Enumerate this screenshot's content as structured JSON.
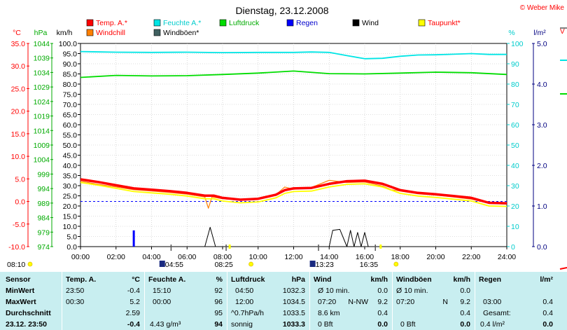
{
  "title": "Dienstag, 23.12.2008",
  "copyright": "© Weber Mike",
  "chart_data": {
    "type": "line",
    "x_ticks": [
      "00:00",
      "02:00",
      "04:00",
      "06:00",
      "08:00",
      "10:00",
      "12:00",
      "14:00",
      "16:00",
      "18:00",
      "20:00",
      "22:00",
      "24:00"
    ],
    "axes": {
      "temp": {
        "label": "°C",
        "ticks": [
          "35.0",
          "30.0",
          "25.0",
          "20.0",
          "15.0",
          "10.0",
          "5.0",
          "0.0",
          "-5.0",
          "-10.0"
        ],
        "range": [
          -10,
          35
        ],
        "color": "#ff0000"
      },
      "pressure": {
        "label": "hPa",
        "ticks": [
          "1044",
          "1039",
          "1034",
          "1029",
          "1024",
          "1019",
          "1014",
          "1009",
          "1004",
          "999",
          "994",
          "989",
          "984",
          "979",
          "974"
        ],
        "range": [
          974,
          1044
        ],
        "color": "#00aa00"
      },
      "wind": {
        "label": "km/h",
        "ticks": [
          "100.0",
          "95.0",
          "90.0",
          "85.0",
          "80.0",
          "75.0",
          "70.0",
          "65.0",
          "60.0",
          "55.0",
          "50.0",
          "45.0",
          "40.0",
          "35.0",
          "30.0",
          "25.0",
          "20.0",
          "15.0",
          "10.0",
          "5.0",
          "0.0"
        ],
        "range": [
          0,
          100
        ],
        "color": "#000000"
      },
      "humidity": {
        "label": "%",
        "ticks": [
          "100",
          "90",
          "80",
          "70",
          "60",
          "50",
          "40",
          "30",
          "20",
          "10",
          "0"
        ],
        "range": [
          0,
          100
        ],
        "color": "#00c8c8"
      },
      "rain": {
        "label": "l/m²",
        "ticks": [
          "5.0",
          "4.0",
          "3.0",
          "2.0",
          "1.0",
          "0.0"
        ],
        "range": [
          0,
          5
        ],
        "color": "#000080"
      }
    },
    "legend": [
      {
        "name": "Temp. A.*",
        "color": "#ff0000"
      },
      {
        "name": "Feuchte A.*",
        "color": "#00e5e5"
      },
      {
        "name": "Luftdruck",
        "color": "#00dd00"
      },
      {
        "name": "Regen",
        "color": "#0000ff"
      },
      {
        "name": "Wind",
        "color": "#000000"
      },
      {
        "name": "Taupunkt*",
        "color": "#ffff00"
      },
      {
        "name": "Windchill",
        "color": "#ff8000"
      },
      {
        "name": "Windböen*",
        "color": "#406060"
      }
    ],
    "series": [
      {
        "name": "Temp. A.*",
        "axis": "temp",
        "color": "#ff0000",
        "width": 3.5,
        "x": [
          0,
          1,
          2,
          3,
          4,
          5,
          6,
          7,
          7.5,
          8,
          9,
          10,
          11,
          11.5,
          12,
          13,
          14,
          15,
          16,
          17,
          17.5,
          18,
          19,
          20,
          21,
          22,
          23,
          24
        ],
        "y": [
          4.9,
          4.3,
          3.6,
          2.9,
          2.6,
          2.3,
          1.9,
          1.3,
          1.3,
          0.8,
          0.4,
          0.6,
          1.5,
          2.5,
          2.9,
          3.0,
          3.9,
          4.5,
          4.6,
          3.9,
          3.2,
          2.5,
          1.9,
          1.6,
          1.2,
          0.8,
          -0.3,
          -0.4
        ]
      },
      {
        "name": "Feuchte A.*",
        "axis": "humidity",
        "color": "#00e5e5",
        "width": 1.8,
        "x": [
          0,
          2,
          4,
          6,
          8,
          10,
          12,
          13,
          14,
          15,
          16,
          17,
          18,
          19,
          20,
          21,
          22,
          23,
          24
        ],
        "y": [
          96,
          95.7,
          95.6,
          95.7,
          95.5,
          95.6,
          95.6,
          95.8,
          95.6,
          94,
          92.5,
          92.7,
          93.7,
          94.3,
          94.4,
          94.7,
          95,
          94.6,
          94.6
        ]
      },
      {
        "name": "Luftdruck",
        "axis": "pressure",
        "color": "#00dd00",
        "width": 1.8,
        "x": [
          0,
          2,
          4,
          6,
          8,
          10,
          12,
          14,
          16,
          18,
          20,
          22,
          24
        ],
        "y": [
          1032.3,
          1033,
          1032.8,
          1032.9,
          1033.3,
          1033.8,
          1034.5,
          1033.6,
          1033.5,
          1033.8,
          1034.1,
          1033.9,
          1033.3
        ]
      },
      {
        "name": "Windchill",
        "axis": "temp",
        "color": "#ff8000",
        "width": 1.2,
        "x": [
          0,
          1,
          2,
          3,
          4,
          5,
          6,
          7,
          7.2,
          7.4,
          8,
          9,
          10,
          11,
          11.5,
          12,
          13,
          14,
          15,
          16,
          17,
          17.5,
          18,
          19,
          20,
          21,
          22,
          23,
          24
        ],
        "y": [
          4.5,
          3.8,
          3.2,
          2.6,
          2.3,
          2.0,
          1.6,
          1.0,
          -1.5,
          1.0,
          0.6,
          0.3,
          0.5,
          1.5,
          3.2,
          2.7,
          3.1,
          4.7,
          4.2,
          4.3,
          3.4,
          2.6,
          2.3,
          1.7,
          1.4,
          1.0,
          0.5,
          -0.4,
          -0.6
        ]
      },
      {
        "name": "Taupunkt*",
        "axis": "temp",
        "color": "#ffff00",
        "width": 1.8,
        "x": [
          0,
          1,
          2,
          3,
          4,
          5,
          6,
          7,
          7.5,
          8,
          9,
          10,
          11,
          11.5,
          12,
          13,
          14,
          15,
          16,
          17,
          17.5,
          18,
          19,
          20,
          21,
          22,
          23,
          24
        ],
        "y": [
          4.2,
          3.6,
          2.9,
          2.2,
          1.9,
          1.6,
          1.2,
          0.6,
          0.6,
          0.1,
          -0.3,
          -0.1,
          0.8,
          1.8,
          2.2,
          2.3,
          3.2,
          3.8,
          3.9,
          3.2,
          2.5,
          1.8,
          1.2,
          0.9,
          0.5,
          0.1,
          -1.0,
          -1.1
        ]
      },
      {
        "name": "Wind",
        "axis": "wind",
        "color": "#000000",
        "width": 1.0,
        "x": [
          0,
          7.0,
          7.3,
          7.6,
          7.9,
          14.0,
          14.2,
          14.6,
          15.0,
          15.2,
          15.4,
          15.6,
          15.8,
          16.0,
          16.2,
          16.4,
          24
        ],
        "y": [
          0,
          0,
          9.5,
          0,
          0,
          0,
          8,
          8.5,
          0,
          8,
          0,
          7,
          0,
          7,
          0,
          0,
          0
        ]
      },
      {
        "name": "Regen",
        "axis": "rain",
        "color": "#0000ff",
        "type": "bar",
        "x": [
          3.0
        ],
        "y": [
          0.4
        ]
      }
    ],
    "reference_line": {
      "axis": "temp",
      "value": 0,
      "color": "#0000ff",
      "style": "dashed"
    },
    "markers_below": [
      {
        "time": "08:10",
        "icon": "sunrise"
      },
      {
        "time": "04:55",
        "icon": "moon"
      },
      {
        "time": "08:25",
        "icon": "sun"
      },
      {
        "time": "13:23",
        "icon": "moon"
      },
      {
        "time": "16:35",
        "icon": "sunset"
      }
    ]
  },
  "table": {
    "headers": {
      "sensor": "Sensor",
      "temp": "Temp. A.",
      "temp_unit": "°C",
      "hum": "Feuchte A.",
      "hum_unit": "%",
      "press": "Luftdruck",
      "press_unit": "hPa",
      "wind": "Wind",
      "wind_unit": "km/h",
      "gust": "Windböen",
      "gust_unit": "km/h",
      "rain": "Regen",
      "rain_unit": "l/m²"
    },
    "rows": [
      {
        "label": "MinWert",
        "temp_time": "23:50",
        "temp_val": "-0.4",
        "hum_time": "15:10",
        "hum_val": "92",
        "press_time": "04:50",
        "press_val": "1032.3",
        "wind_time": "Ø 10 min.",
        "wind_val": "0.0",
        "gust_time": "Ø 10 min.",
        "gust_val": "0.0",
        "rain_time": "",
        "rain_val": ""
      },
      {
        "label": "MaxWert",
        "temp_time": "00:30",
        "temp_val": "5.2",
        "hum_time": "00:00",
        "hum_val": "96",
        "press_time": "12:00",
        "press_val": "1034.5",
        "wind_time": "07:20",
        "wind_dir": "N-NW",
        "wind_val": "9.2",
        "gust_time": "07:20",
        "gust_dir": "N",
        "gust_val": "9.2",
        "rain_time": "03:00",
        "rain_val": "0.4"
      },
      {
        "label": "Durchschnitt",
        "temp_time": "",
        "temp_val": "2.59",
        "hum_time": "",
        "hum_val": "95",
        "press_time": "^0.7hPa/h",
        "press_val": "1033.5",
        "wind_time": "8.6 km",
        "wind_val": "0.4",
        "gust_time": "",
        "gust_val": "0.4",
        "rain_time": "Gesamt:",
        "rain_val": "0.4"
      },
      {
        "label": "23.12.  23:50",
        "temp_time": "",
        "temp_val": "-0.4",
        "hum_time": "4.43 g/m³",
        "hum_val": "94",
        "press_time": "sonnig",
        "press_val": "1033.3",
        "wind_time": "0 Bft",
        "wind_val": "0.0",
        "gust_time": "0 Bft",
        "gust_val": "0.0",
        "rain_time": "0.4 l/m²",
        "rain_val": "0.0"
      }
    ]
  }
}
